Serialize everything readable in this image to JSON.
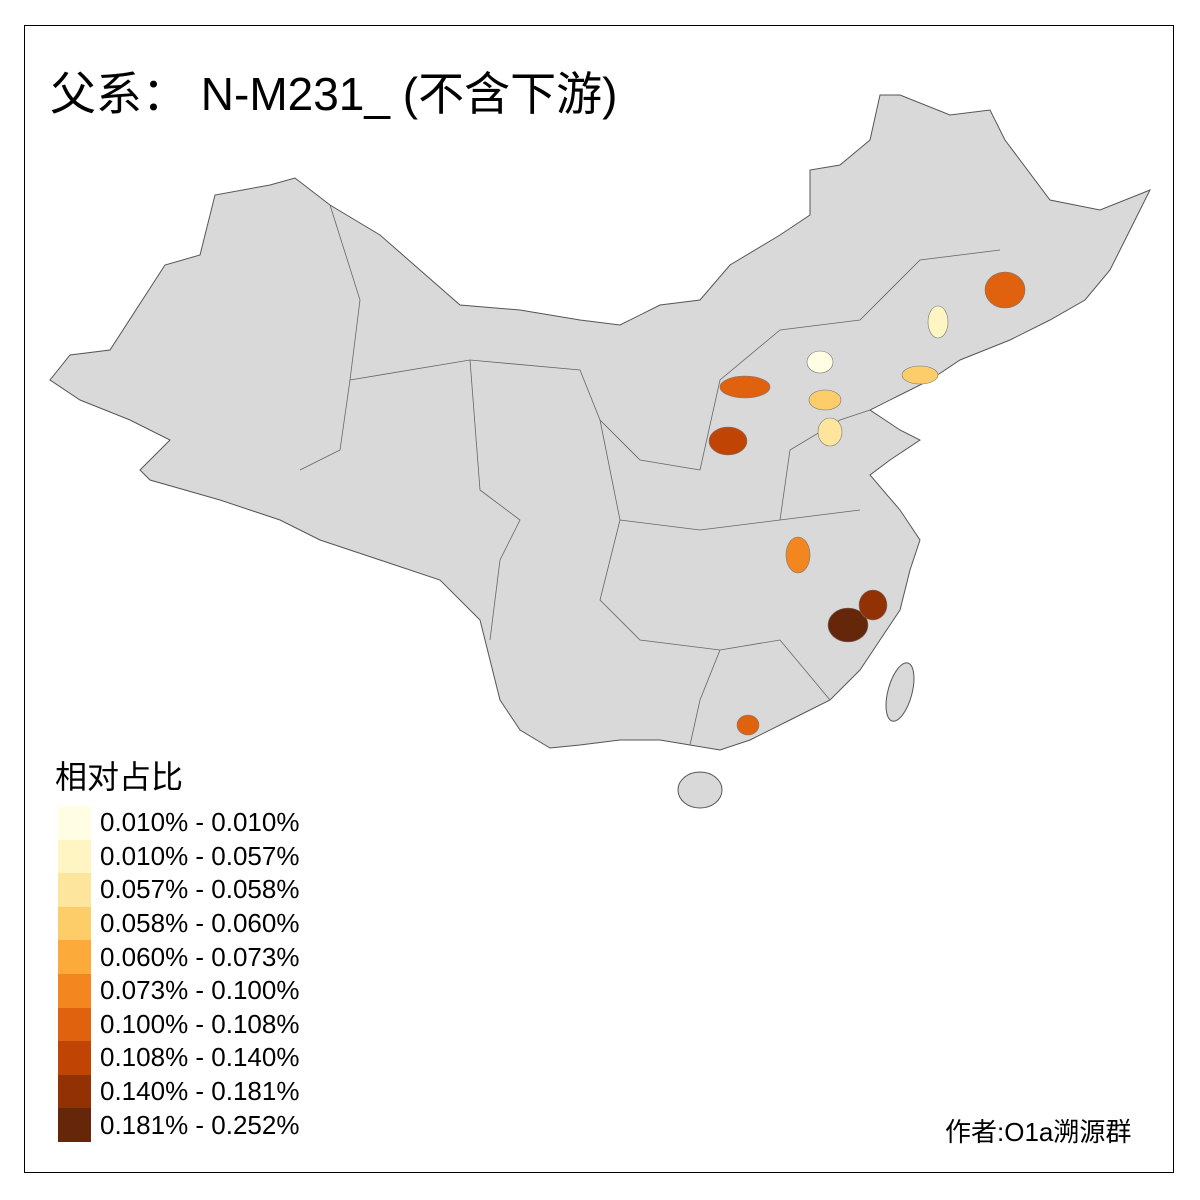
{
  "title": "父系： N-M231_ (不含下游)",
  "legend": {
    "title": "相对占比",
    "items": [
      {
        "label": "0.010% - 0.010%",
        "color": "#fffde3"
      },
      {
        "label": "0.010% - 0.057%",
        "color": "#fff5c2"
      },
      {
        "label": "0.057% - 0.058%",
        "color": "#fde59d"
      },
      {
        "label": "0.058% - 0.060%",
        "color": "#fdcd6a"
      },
      {
        "label": "0.060% - 0.073%",
        "color": "#fcab3b"
      },
      {
        "label": "0.073% - 0.100%",
        "color": "#f3861f"
      },
      {
        "label": "0.100% - 0.108%",
        "color": "#e0620f"
      },
      {
        "label": "0.108% - 0.140%",
        "color": "#c04404"
      },
      {
        "label": "0.140% - 0.181%",
        "color": "#923104"
      },
      {
        "label": "0.181% - 0.252%",
        "color": "#66260a"
      }
    ]
  },
  "map": {
    "base_color": "#d9d9d9",
    "border_color": "#555555",
    "no_data_color": "#d9d9d9"
  },
  "author": "作者:O1a溯源群"
}
